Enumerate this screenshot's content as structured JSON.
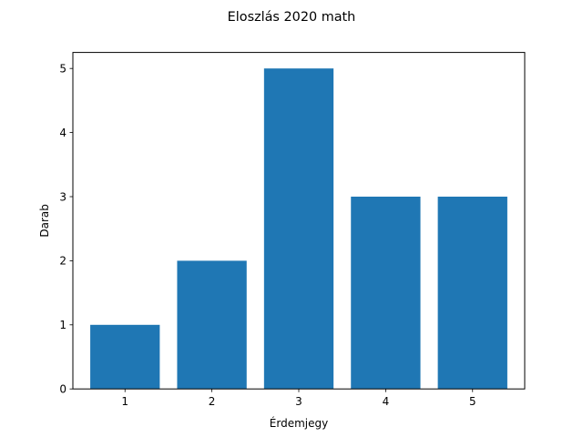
{
  "chart_data": {
    "type": "bar",
    "title": "Eloszlás 2020 math",
    "xlabel": "Érdemjegy",
    "ylabel": "Darab",
    "categories": [
      "1",
      "2",
      "3",
      "4",
      "5"
    ],
    "values": [
      1,
      2,
      5,
      3,
      3
    ],
    "ylim": [
      0,
      5.25
    ],
    "yticks": [
      "0",
      "1",
      "2",
      "3",
      "4",
      "5"
    ],
    "grid": false,
    "legend": "none",
    "bar_color": "#1f77b4"
  }
}
